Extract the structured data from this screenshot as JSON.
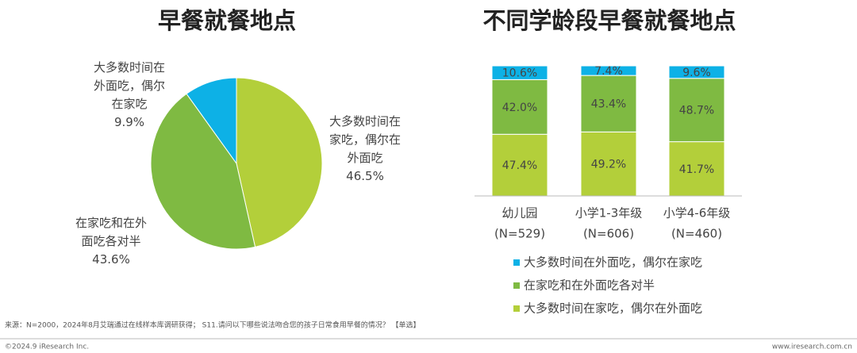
{
  "chart_data": [
    {
      "type": "pie",
      "title": "早餐就餐地点",
      "categories": [
        "大多数时间在家吃，偶尔在外面吃",
        "在家吃和在外面吃各对半",
        "大多数时间在外面吃，偶尔在家吃"
      ],
      "values": [
        46.5,
        43.6,
        9.9
      ],
      "value_labels": [
        "46.5%",
        "43.6%",
        "9.9%"
      ],
      "colors": [
        "#b3cf3a",
        "#7fba42",
        "#0db1e6"
      ]
    },
    {
      "type": "stacked_bar",
      "title": "不同学龄段早餐就餐地点",
      "categories": [
        "幼儿园",
        "小学1-3年级",
        "小学4-6年级"
      ],
      "category_notes": [
        "(N=529)",
        "(N=606)",
        "(N=460)"
      ],
      "ylim": [
        0,
        100
      ],
      "series": [
        {
          "name": "大多数时间在家吃，偶尔在外面吃",
          "color": "#b3cf3a",
          "values": [
            47.4,
            49.2,
            41.7
          ],
          "value_labels": [
            "47.4%",
            "49.2%",
            "41.7%"
          ]
        },
        {
          "name": "在家吃和在外面吃各对半",
          "color": "#7fba42",
          "values": [
            42.0,
            43.4,
            48.7
          ],
          "value_labels": [
            "42.0%",
            "43.4%",
            "48.7%"
          ]
        },
        {
          "name": "大多数时间在外面吃，偶尔在家吃",
          "color": "#0db1e6",
          "values": [
            10.6,
            7.4,
            9.6
          ],
          "value_labels": [
            "10.6%",
            "7.4%",
            "9.6%"
          ]
        }
      ]
    }
  ],
  "footer": {
    "source": "来源：N=2000，2024年8月艾瑞通过在线样本库调研获得； S11.请问以下哪些说法吻合您的孩子日常食用早餐的情况？ 【单选】",
    "copyright": "©2024.9 iResearch Inc.",
    "url": "www.iresearch.com.cn"
  }
}
